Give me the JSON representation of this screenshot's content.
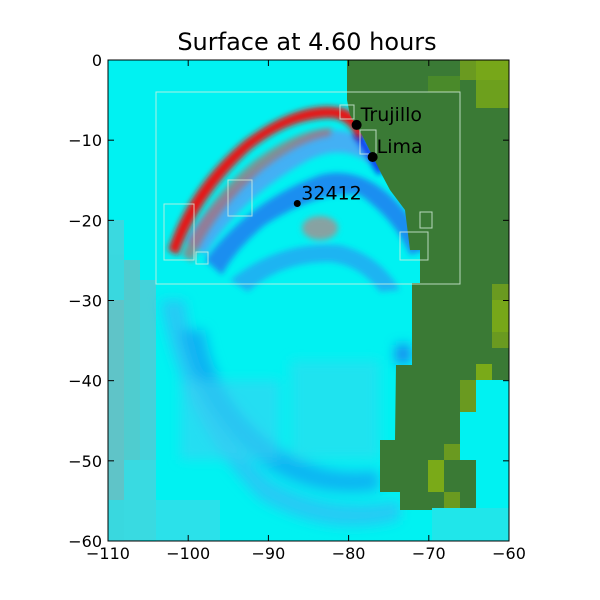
{
  "chart_data": {
    "type": "heatmap",
    "title": "Surface at 4.60 hours",
    "xlabel": "",
    "ylabel": "",
    "xlim": [
      -110,
      -60
    ],
    "ylim": [
      -60,
      0
    ],
    "x_ticks": [
      -110,
      -100,
      -90,
      -80,
      -70,
      -60
    ],
    "y_ticks": [
      0,
      -10,
      -20,
      -30,
      -40,
      -50,
      -60
    ],
    "x_tick_labels": [
      "−110",
      "−100",
      "−90",
      "−80",
      "−70",
      "−60"
    ],
    "y_tick_labels": [
      "0",
      "−10",
      "−20",
      "−30",
      "−40",
      "−50",
      "−60"
    ],
    "grid": false,
    "colors": {
      "ocean_calm": "#00f2f2",
      "ocean_light": "#2ee6f0",
      "ocean_grey": "#5fc8cc",
      "wave_trough": "#1e7cf0",
      "wave_trough_light": "#4aa8f4",
      "wave_crest": "#e61919",
      "land": "#3a7a35",
      "land_high": "#6a9a20",
      "land_peak": "#7aaa18",
      "patch_edge": "#d8f0e0"
    },
    "markers": [
      {
        "label": "Trujillo",
        "x": -79.0,
        "y": -8.1
      },
      {
        "label": "Lima",
        "x": -77.0,
        "y": -12.1
      },
      {
        "label": "32412",
        "x": -86.4,
        "y": -17.9
      }
    ],
    "refinement_patch": {
      "x_range": [
        -103,
        -66
      ],
      "y_range": [
        -28,
        -4
      ]
    }
  }
}
